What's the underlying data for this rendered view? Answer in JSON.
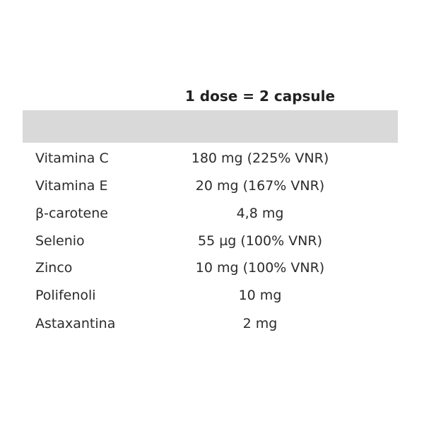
{
  "header": "1 dose = 2 capsule",
  "rows": [
    {
      "name": "Vitamina C",
      "value": "180 mg (225% VNR)"
    },
    {
      "name": "Vitamina E",
      "value": "20 mg (167% VNR)"
    },
    {
      "name": "β-carotene",
      "value": "4,8 mg"
    },
    {
      "name": "Selenio",
      "value": "55 µg (100% VNR)"
    },
    {
      "name": "Zinco",
      "value": "10 mg (100% VNR)"
    },
    {
      "name": "Polifenoli",
      "value": "10 mg"
    },
    {
      "name": "Astaxantina",
      "value": "2 mg"
    }
  ]
}
